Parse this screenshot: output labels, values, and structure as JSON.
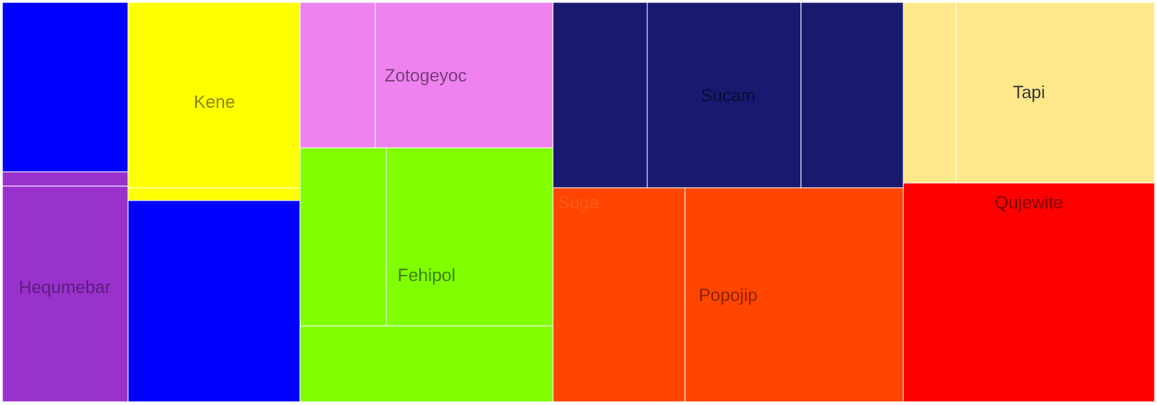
{
  "chart_data": {
    "type": "treemap",
    "groups": [
      {
        "name": "Hequmebar",
        "color": "#9932CC",
        "label_color": "#5a1d78"
      },
      {
        "name": "Kene",
        "color": "#FFFF00",
        "label_color": "#8a8a00"
      },
      {
        "name": "Zotogeyoc",
        "color": "#EE82EE",
        "label_color": "#7a3f7a"
      },
      {
        "name": "Fehipol",
        "color": "#7FFF00",
        "label_color": "#3f7f00"
      },
      {
        "name": "Sucam",
        "color": "#191970",
        "label_color": "#0c0c38"
      },
      {
        "name": "Tapi",
        "color": "#FFE88B",
        "label_color": "#333333"
      },
      {
        "name": "Suga",
        "color": "#FF4500",
        "label_color": "#ff5a1a"
      },
      {
        "name": "Popojip",
        "color": "#FF4500",
        "label_color": "#8a2500"
      },
      {
        "name": "Qujewite",
        "color": "#FF0000",
        "label_color": "#800000"
      }
    ],
    "grid": false,
    "legend": "none"
  }
}
